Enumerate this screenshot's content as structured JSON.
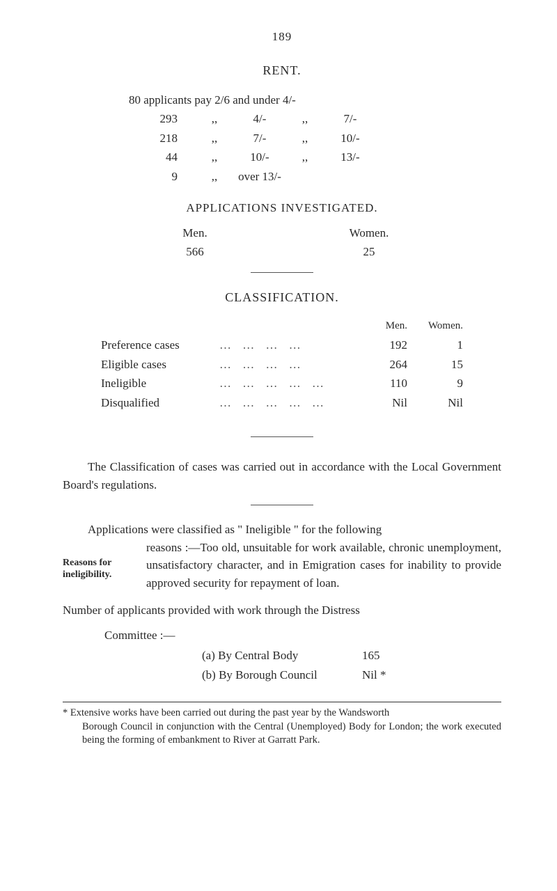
{
  "page_number": "189",
  "rent": {
    "title": "RENT.",
    "intro": "80 applicants pay 2/6 and under 4/-",
    "rows": [
      {
        "n": "293",
        "sep1": ",,",
        "from": "4/-",
        "sep2": ",,",
        "to": "7/-"
      },
      {
        "n": "218",
        "sep1": ",,",
        "from": "7/-",
        "sep2": ",,",
        "to": "10/-"
      },
      {
        "n": "44",
        "sep1": ",,",
        "from": "10/-",
        "sep2": ",,",
        "to": "13/-"
      },
      {
        "n": "9",
        "sep1": ",,",
        "from": "over 13/-",
        "sep2": "",
        "to": ""
      }
    ]
  },
  "applications": {
    "title": "APPLICATIONS  INVESTIGATED.",
    "head_men": "Men.",
    "head_women": "Women.",
    "val_men": "566",
    "val_women": "25"
  },
  "classification": {
    "title": "CLASSIFICATION.",
    "head_men": "Men.",
    "head_women": "Women.",
    "rows": [
      {
        "label": "Preference cases",
        "men": "192",
        "women": "1"
      },
      {
        "label": "Eligible cases",
        "men": "264",
        "women": "15"
      },
      {
        "label": "Ineligible",
        "men": "110",
        "women": "9"
      },
      {
        "label": "Disqualified",
        "men": "Nil",
        "women": "Nil"
      }
    ]
  },
  "para1": "The Classification of cases was carried out in accordance with the Local Government Board's regulations.",
  "sidehead_line1": "Reasons for",
  "sidehead_line2": "ineligibility.",
  "para2_lead": "Applications were classified as \" Ineligible \" for the following",
  "para2_rest": "reasons :—Too old, unsuitable for work available, chronic unemployment, unsatisfactory character, and in Emigration cases for inability to provide approved security for repayment of loan.",
  "number_intro": "Number of applicants provided with work through the Distress",
  "number_intro2": "Committee :—",
  "ab": {
    "a_label": "(a) By Central Body",
    "a_val": "165",
    "b_label": "(b) By Borough Council",
    "b_val": "Nil *"
  },
  "footnote": {
    "line1": "* Extensive works have been carried out during the past year by the Wandsworth",
    "line2": "Borough Council in conjunction with the Central (Unemployed) Body for London; the work executed being the forming of embankment to River at Garratt Park."
  }
}
